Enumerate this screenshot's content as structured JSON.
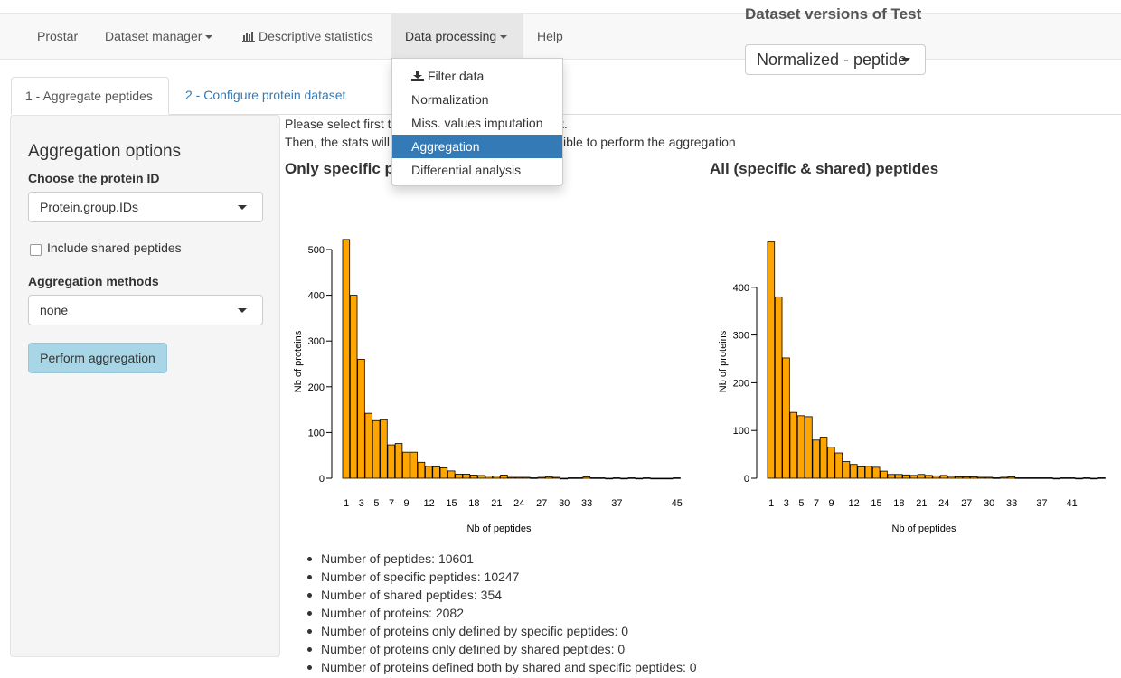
{
  "navbar": {
    "brand": "Prostar",
    "dataset_manager": "Dataset manager",
    "descriptive_statistics": "Descriptive statistics",
    "data_processing": "Data processing",
    "help": "Help"
  },
  "dataset_versions": {
    "title": "Dataset versions of Test",
    "selected": "Normalized - peptide"
  },
  "tabs": [
    {
      "label": "1 - Aggregate peptides",
      "active": true
    },
    {
      "label": "2 - Configure protein dataset",
      "active": false
    }
  ],
  "dropdown": {
    "items": [
      {
        "label": "Filter data",
        "icon": "download-icon"
      },
      {
        "label": "Normalization"
      },
      {
        "label": "Miss. values imputation"
      },
      {
        "label": "Aggregation",
        "selected": true
      },
      {
        "label": "Differential analysis"
      }
    ]
  },
  "sidebar": {
    "title": "Aggregation options",
    "protein_id_label": "Choose the protein ID",
    "protein_id_value": "Protein.group.IDs",
    "shared_label": "Include shared peptides",
    "methods_label": "Aggregation methods",
    "methods_value": "none",
    "perform_button": "Perform aggregation"
  },
  "main": {
    "info_line1_start": "Please select first t",
    "info_line1_end": "t.",
    "info_line2_start": "Then, the stats will",
    "info_line2_end": "ible to perform the aggregation"
  },
  "stats": [
    "Number of peptides: 10601",
    "Number of specific peptides: 10247",
    "Number of shared peptides: 354",
    "Number of proteins: 2082",
    "Number of proteins only defined by specific peptides: 0",
    "Number of proteins only defined by shared peptides: 0",
    "Number of proteins defined both by shared and specific peptides: 0"
  ],
  "colors": {
    "bar_fill": "#FFA500",
    "selected_menu": "#337ab7",
    "button": "#a8d6e6"
  },
  "chart_data": [
    {
      "type": "bar",
      "title": "Only specific p",
      "xlabel": "Nb of peptides",
      "ylabel": "Nb of proteins",
      "ylim": [
        0,
        520
      ],
      "yticks": [
        0,
        100,
        200,
        300,
        400,
        500
      ],
      "tick_labels": [
        "1",
        "3",
        "5",
        "7",
        "9",
        "12",
        "15",
        "18",
        "21",
        "24",
        "27",
        "30",
        "33",
        "37",
        "45"
      ],
      "tick_positions": [
        1,
        3,
        5,
        7,
        9,
        12,
        15,
        18,
        21,
        24,
        27,
        30,
        33,
        37,
        45
      ],
      "x": [
        1,
        2,
        3,
        4,
        5,
        6,
        7,
        8,
        9,
        10,
        11,
        12,
        13,
        14,
        15,
        16,
        17,
        18,
        19,
        20,
        21,
        22,
        23,
        24,
        25,
        26,
        27,
        28,
        29,
        30,
        31,
        32,
        33,
        34,
        35,
        36,
        37,
        38,
        39,
        40,
        41,
        42,
        43,
        44,
        45
      ],
      "values": [
        522,
        400,
        260,
        142,
        126,
        128,
        73,
        76,
        57,
        57,
        35,
        26,
        25,
        23,
        16,
        9,
        9,
        7,
        6,
        5,
        5,
        7,
        2,
        2,
        2,
        1,
        2,
        3,
        2,
        0,
        1,
        1,
        3,
        1,
        1,
        0,
        1,
        0,
        1,
        0,
        1,
        0,
        0,
        0,
        1
      ]
    },
    {
      "type": "bar",
      "title": "All (specific & shared) peptides",
      "xlabel": "Nb of peptides",
      "ylabel": "Nb of proteins",
      "ylim": [
        0,
        500
      ],
      "yticks": [
        0,
        100,
        200,
        300,
        400
      ],
      "tick_labels": [
        "1",
        "3",
        "5",
        "7",
        "9",
        "12",
        "15",
        "18",
        "21",
        "24",
        "27",
        "30",
        "33",
        "37",
        "41"
      ],
      "tick_positions": [
        1,
        3,
        5,
        7,
        9,
        12,
        15,
        18,
        21,
        24,
        27,
        30,
        33,
        37,
        41
      ],
      "x": [
        1,
        2,
        3,
        4,
        5,
        6,
        7,
        8,
        9,
        10,
        11,
        12,
        13,
        14,
        15,
        16,
        17,
        18,
        19,
        20,
        21,
        22,
        23,
        24,
        25,
        26,
        27,
        28,
        29,
        30,
        31,
        32,
        33,
        34,
        35,
        36,
        37,
        38,
        39,
        40,
        41,
        42,
        43,
        44,
        45
      ],
      "values": [
        495,
        380,
        252,
        138,
        131,
        129,
        80,
        86,
        65,
        53,
        35,
        29,
        24,
        25,
        23,
        15,
        8,
        8,
        7,
        6,
        8,
        6,
        5,
        6,
        4,
        3,
        3,
        3,
        2,
        2,
        1,
        2,
        3,
        1,
        1,
        1,
        1,
        1,
        0,
        1,
        1,
        0,
        1,
        0,
        1
      ]
    }
  ]
}
